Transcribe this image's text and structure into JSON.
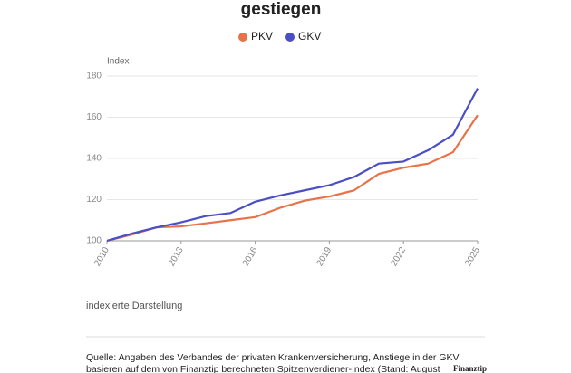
{
  "chart_data": {
    "type": "line",
    "title": "gestiegen",
    "y_label": "Index",
    "note": "indexierte Darstellung",
    "source": [
      "Quelle: Angaben des Verbandes der privaten Krankenversicherung, Anstiege in der GKV",
      "basieren auf dem von Finanztip berechneten Spitzenverdiener-Index (Stand: August"
    ],
    "logo": "Finanztip",
    "x": [
      2010,
      2011,
      2012,
      2013,
      2014,
      2015,
      2016,
      2017,
      2018,
      2019,
      2020,
      2021,
      2022,
      2023,
      2024,
      2025
    ],
    "series": [
      {
        "name": "PKV",
        "color": "#e8734a",
        "values": [
          100,
          103,
          106.5,
          107,
          108.5,
          110,
          111.5,
          116,
          119.5,
          121.5,
          124.5,
          132.5,
          135.5,
          137.5,
          143,
          161
        ]
      },
      {
        "name": "GKV",
        "color": "#4a4fc4",
        "values": [
          100,
          103.5,
          106.5,
          109,
          112,
          113.5,
          119,
          122,
          124.5,
          127,
          131,
          137.5,
          138.5,
          144,
          151.5,
          174
        ]
      }
    ],
    "xlim": [
      2010,
      2025
    ],
    "xticks": [
      2010,
      2013,
      2016,
      2019,
      2022,
      2025
    ],
    "ylim": [
      100,
      180
    ],
    "yticks": [
      100,
      120,
      140,
      160,
      180
    ],
    "grid": true
  }
}
